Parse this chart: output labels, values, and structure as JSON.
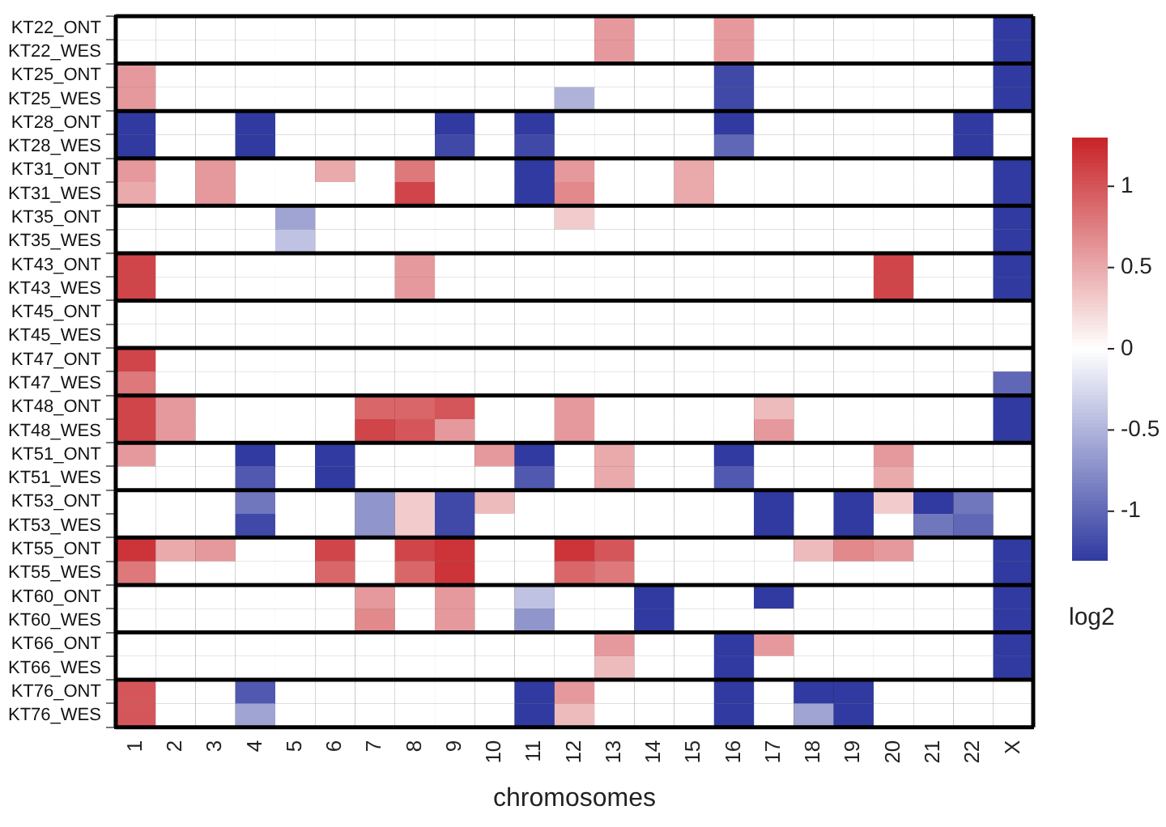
{
  "chart_data": {
    "type": "heatmap",
    "xlabel": "chromosomes",
    "clabel": "log2",
    "grid": true,
    "categories": [
      "1",
      "2",
      "3",
      "4",
      "5",
      "6",
      "7",
      "8",
      "9",
      "10",
      "11",
      "12",
      "13",
      "14",
      "15",
      "16",
      "17",
      "18",
      "19",
      "20",
      "21",
      "22",
      "X"
    ],
    "y_categories": [
      "KT22_ONT",
      "KT22_WES",
      "KT25_ONT",
      "KT25_WES",
      "KT28_ONT",
      "KT28_WES",
      "KT31_ONT",
      "KT31_WES",
      "KT35_ONT",
      "KT35_WES",
      "KT43_ONT",
      "KT43_WES",
      "KT45_ONT",
      "KT45_WES",
      "KT47_ONT",
      "KT47_WES",
      "KT48_ONT",
      "KT48_WES",
      "KT51_ONT",
      "KT51_WES",
      "KT53_ONT",
      "KT53_WES",
      "KT55_ONT",
      "KT55_WES",
      "KT60_ONT",
      "KT60_WES",
      "KT66_ONT",
      "KT66_WES",
      "KT76_ONT",
      "KT76_WES"
    ],
    "cells": [
      [
        0,
        0,
        0,
        0,
        0,
        0,
        0,
        0,
        0,
        0,
        0,
        0,
        0.6,
        0,
        0,
        0.6,
        0,
        0,
        0,
        0,
        0,
        0,
        -1.3
      ],
      [
        0,
        0,
        0,
        0,
        0,
        0,
        0,
        0,
        0,
        0,
        0,
        0,
        0.6,
        0,
        0,
        0.6,
        0,
        0,
        0,
        0,
        0,
        0,
        -1.3
      ],
      [
        0.6,
        0,
        0,
        0,
        0,
        0,
        0,
        0,
        0,
        0,
        0,
        0,
        0,
        0,
        0,
        -1.2,
        0,
        0,
        0,
        0,
        0,
        0,
        -1.3
      ],
      [
        0.6,
        0,
        0,
        0,
        0,
        0,
        0,
        0,
        0,
        0,
        0,
        -0.5,
        0,
        0,
        0,
        -1.2,
        0,
        0,
        0,
        0,
        0,
        0,
        -1.3
      ],
      [
        -1.3,
        0,
        0,
        -1.3,
        0,
        0,
        0,
        0,
        -1.3,
        0,
        -1.3,
        0,
        0,
        0,
        0,
        -1.3,
        0,
        0,
        0,
        0,
        0,
        -1.3,
        0
      ],
      [
        -1.3,
        0,
        0,
        -1.3,
        0,
        0,
        0,
        0,
        -1.2,
        0,
        -1.2,
        0,
        0,
        0,
        0,
        -1.0,
        0,
        0,
        0,
        0,
        0,
        -1.3,
        0
      ],
      [
        0.6,
        0,
        0.6,
        0,
        0,
        0.5,
        0,
        0.8,
        0,
        0,
        -1.3,
        0.6,
        0,
        0,
        0.5,
        0,
        0,
        0,
        0,
        0,
        0,
        0,
        -1.3
      ],
      [
        0.5,
        0,
        0.6,
        0,
        0,
        0,
        0,
        1.1,
        0,
        0,
        -1.3,
        0.7,
        0,
        0,
        0.5,
        0,
        0,
        0,
        0,
        0,
        0,
        0,
        -1.3
      ],
      [
        0,
        0,
        0,
        0,
        -0.6,
        0,
        0,
        0,
        0,
        0,
        0,
        0.3,
        0,
        0,
        0,
        0,
        0,
        0,
        0,
        0,
        0,
        0,
        -1.3
      ],
      [
        0,
        0,
        0,
        0,
        -0.4,
        0,
        0,
        0,
        0,
        0,
        0,
        0,
        0,
        0,
        0,
        0,
        0,
        0,
        0,
        0,
        0,
        0,
        -1.3
      ],
      [
        1.1,
        0,
        0,
        0,
        0,
        0,
        0,
        0.6,
        0,
        0,
        0,
        0,
        0,
        0,
        0,
        0,
        0,
        0,
        0,
        1.1,
        0,
        0,
        -1.3
      ],
      [
        1.1,
        0,
        0,
        0,
        0,
        0,
        0,
        0.6,
        0,
        0,
        0,
        0,
        0,
        0,
        0,
        0,
        0,
        0,
        0,
        1.1,
        0,
        0,
        -1.3
      ],
      [
        0,
        0,
        0,
        0,
        0,
        0,
        0,
        0,
        0,
        0,
        0,
        0,
        0,
        0,
        0,
        0,
        0,
        0,
        0,
        0,
        0,
        0,
        0
      ],
      [
        0,
        0,
        0,
        0,
        0,
        0,
        0,
        0,
        0,
        0,
        0,
        0,
        0,
        0,
        0,
        0,
        0,
        0,
        0,
        0,
        0,
        0,
        0
      ],
      [
        1.1,
        0,
        0,
        0,
        0,
        0,
        0,
        0,
        0,
        0,
        0,
        0,
        0,
        0,
        0,
        0,
        0,
        0,
        0,
        0,
        0,
        0,
        0
      ],
      [
        0.8,
        0,
        0,
        0,
        0,
        0,
        0,
        0,
        0,
        0,
        0,
        0,
        0,
        0,
        0,
        0,
        0,
        0,
        0,
        0,
        0,
        0,
        -1.0
      ],
      [
        1.1,
        0.6,
        0,
        0,
        0,
        0,
        0.9,
        0.9,
        1.0,
        0,
        0,
        0.6,
        0,
        0,
        0,
        0,
        0.4,
        0,
        0,
        0,
        0,
        0,
        -1.3
      ],
      [
        1.1,
        0.6,
        0,
        0,
        0,
        0,
        1.1,
        1.0,
        0.6,
        0,
        0,
        0.6,
        0,
        0,
        0,
        0,
        0.6,
        0,
        0,
        0,
        0,
        0,
        -1.3
      ],
      [
        0.6,
        0,
        0,
        -1.3,
        0,
        -1.3,
        0,
        0,
        0,
        0.6,
        -1.3,
        0,
        0.5,
        0,
        0,
        -1.3,
        0,
        0,
        0,
        0.6,
        0,
        0,
        0
      ],
      [
        0,
        0,
        0,
        -1.1,
        0,
        -1.3,
        0,
        0,
        0,
        0,
        -1.1,
        0,
        0.5,
        0,
        0,
        -1.1,
        0,
        0,
        0,
        0.5,
        0,
        0,
        0
      ],
      [
        0,
        0,
        0,
        -0.9,
        0,
        0,
        -0.7,
        0.3,
        -1.2,
        0.4,
        0,
        0,
        0,
        0,
        0,
        0,
        -1.3,
        0,
        -1.3,
        0.3,
        -1.3,
        -0.9,
        0
      ],
      [
        0,
        0,
        0,
        -1.2,
        0,
        0,
        -0.7,
        0.3,
        -1.2,
        0,
        0,
        0,
        0,
        0,
        0,
        0,
        -1.3,
        0,
        -1.3,
        0,
        -0.9,
        -1.0,
        0
      ],
      [
        1.2,
        0.5,
        0.6,
        0,
        0,
        1.1,
        0,
        1.1,
        1.2,
        0,
        0,
        1.2,
        1.0,
        0,
        0,
        0,
        0,
        0.4,
        0.7,
        0.6,
        0,
        0,
        -1.3
      ],
      [
        0.8,
        0,
        0,
        0,
        0,
        0.9,
        0,
        0.9,
        1.2,
        0,
        0,
        0.9,
        0.8,
        0,
        0,
        0,
        0,
        0,
        0,
        0,
        0,
        0,
        -1.3
      ],
      [
        0,
        0,
        0,
        0,
        0,
        0,
        0.6,
        0,
        0.6,
        0,
        -0.4,
        0,
        0,
        -1.3,
        0,
        0,
        -1.3,
        0,
        0,
        0,
        0,
        0,
        -1.3
      ],
      [
        0,
        0,
        0,
        0,
        0,
        0,
        0.7,
        0,
        0.6,
        0,
        -0.7,
        0,
        0,
        -1.3,
        0,
        0,
        0,
        0,
        0,
        0,
        0,
        0,
        -1.3
      ],
      [
        0,
        0,
        0,
        0,
        0,
        0,
        0,
        0,
        0,
        0,
        0,
        0,
        0.6,
        0,
        0,
        -1.3,
        0.6,
        0,
        0,
        0,
        0,
        0,
        -1.3
      ],
      [
        0,
        0,
        0,
        0,
        0,
        0,
        0,
        0,
        0,
        0,
        0,
        0,
        0.4,
        0,
        0,
        -1.3,
        0,
        0,
        0,
        0,
        0,
        0,
        -1.3
      ],
      [
        1.0,
        0,
        0,
        -1.1,
        0,
        0,
        0,
        0,
        0,
        0,
        -1.3,
        0.6,
        0,
        0,
        0,
        -1.3,
        0,
        -1.3,
        -1.3,
        0,
        0,
        0,
        0
      ],
      [
        1.0,
        0,
        0,
        -0.6,
        0,
        0,
        0,
        0,
        0,
        0,
        -1.3,
        0.4,
        0,
        0,
        0,
        -1.3,
        0,
        -0.6,
        -1.3,
        0,
        0,
        0,
        0
      ]
    ],
    "clim": [
      -1.3,
      1.3
    ],
    "cticks": [
      -1,
      -0.5,
      0,
      0.5,
      1
    ]
  }
}
